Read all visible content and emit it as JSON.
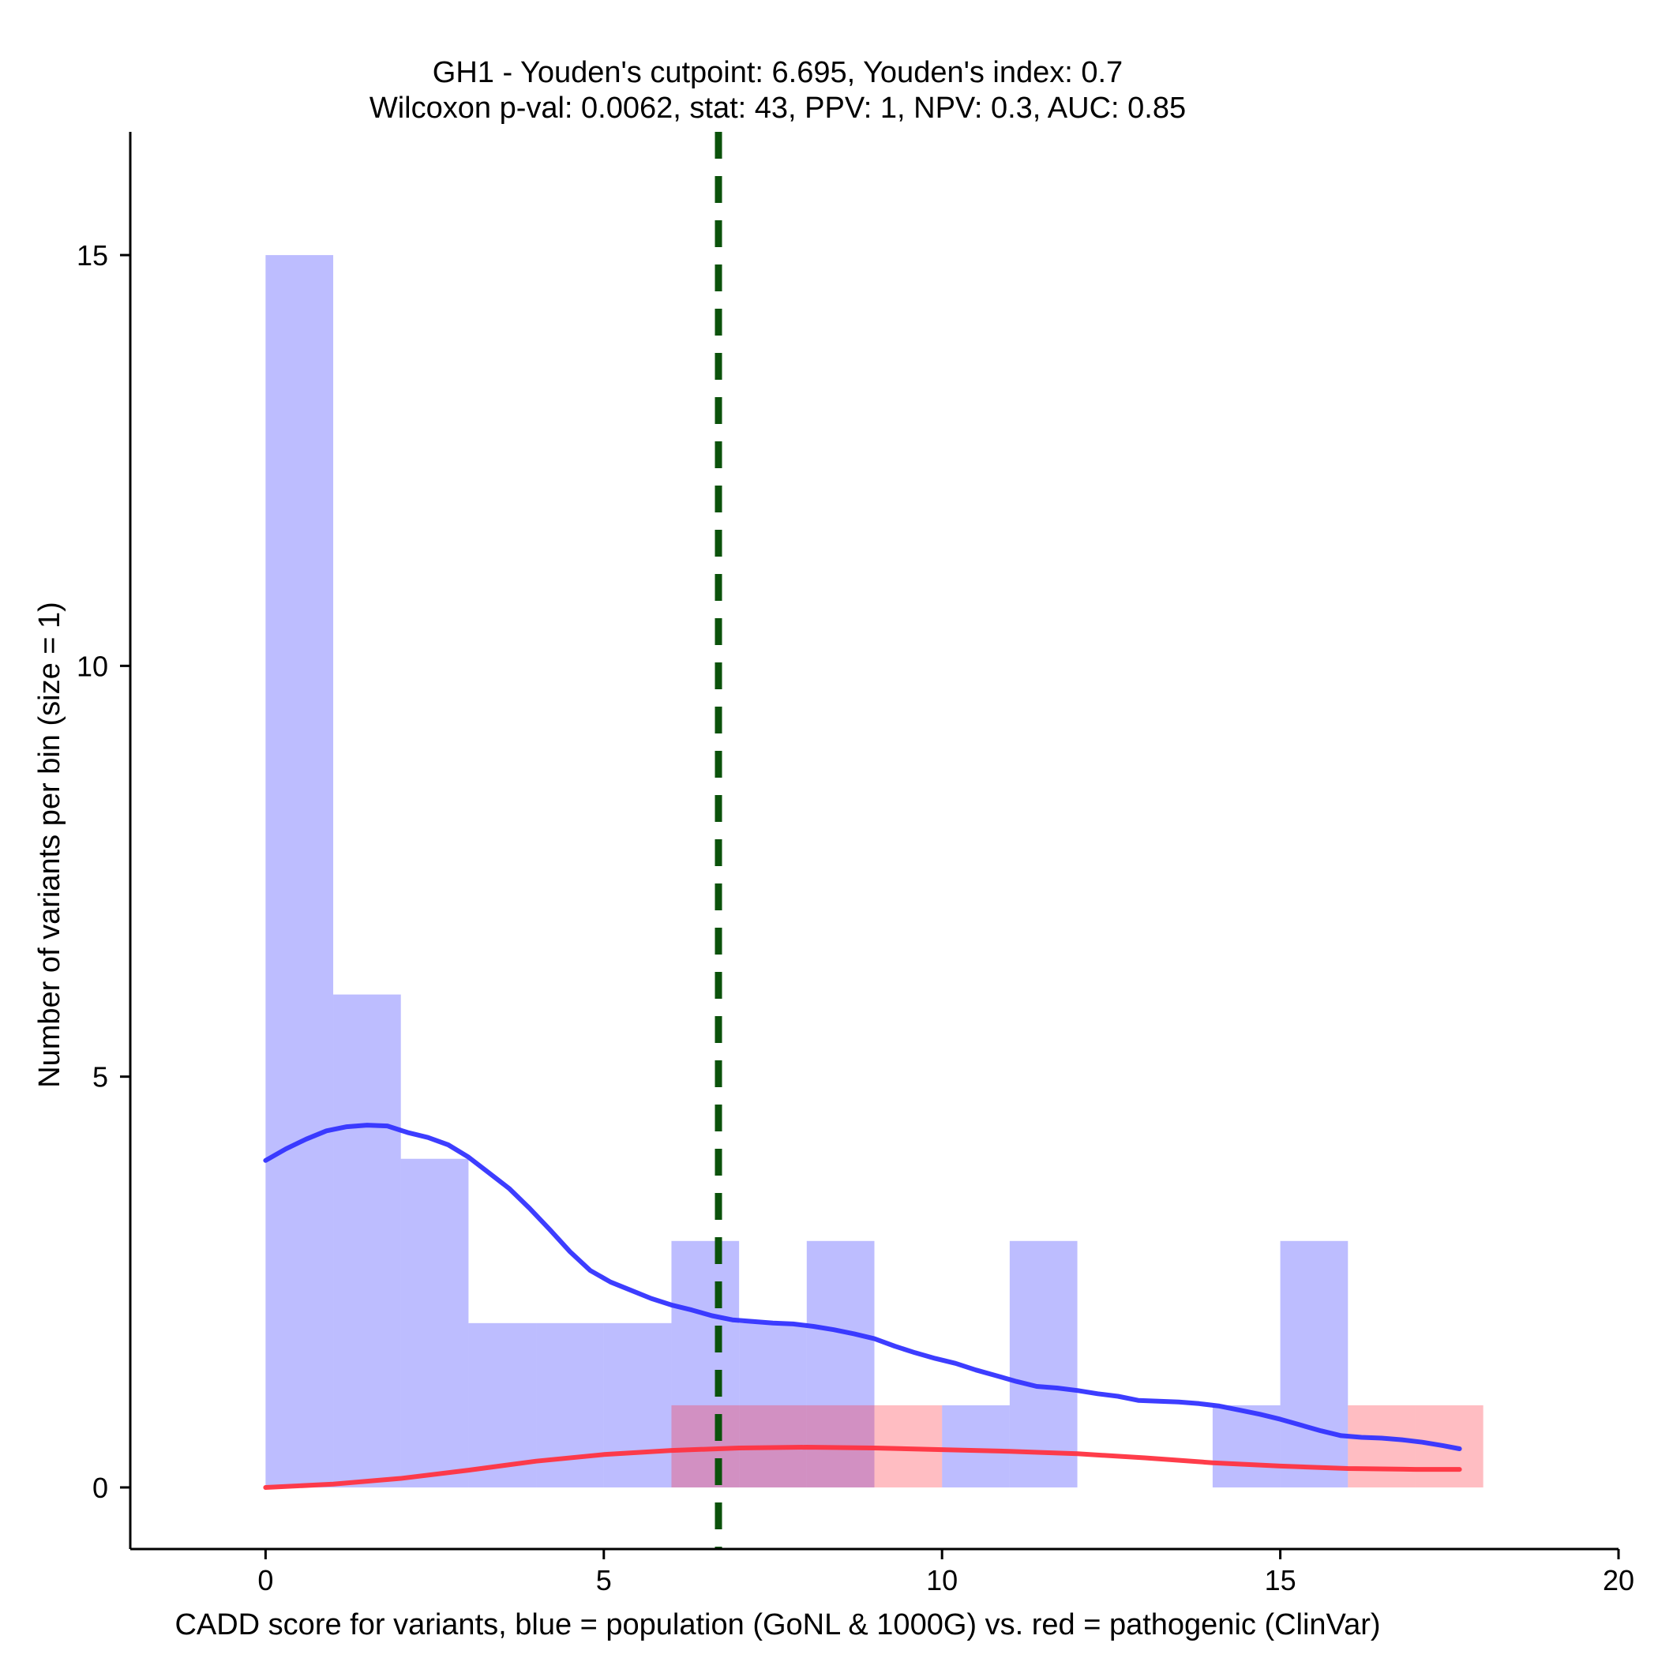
{
  "chart_data": {
    "type": "histogram",
    "title_line1": "GH1 - Youden's cutpoint: 6.695, Youden's index: 0.7",
    "title_line2": "Wilcoxon p-val: 0.0062, stat: 43, PPV: 1, NPV: 0.3, AUC: 0.85",
    "xlabel": "CADD score for variants, blue = population (GoNL & 1000G) vs. red = pathogenic (ClinVar)",
    "ylabel": "Number of variants per bin (size = 1)",
    "xlim": [
      -2,
      20
    ],
    "ylim": [
      -0.75,
      16.5
    ],
    "xticks": [
      0,
      5,
      10,
      15,
      20
    ],
    "yticks": [
      0,
      5,
      10,
      15
    ],
    "bin_size": 1,
    "cutpoint": 6.695,
    "colors": {
      "population": "#3333ff",
      "pathogenic": "#ff3340",
      "cutpoint": "#0b520b",
      "axis": "#000000"
    },
    "series": [
      {
        "name": "population (GoNL & 1000G)",
        "bins": [
          {
            "start": 0,
            "end": 1,
            "count": 15
          },
          {
            "start": 1,
            "end": 2,
            "count": 6
          },
          {
            "start": 2,
            "end": 3,
            "count": 4
          },
          {
            "start": 3,
            "end": 4,
            "count": 2
          },
          {
            "start": 4,
            "end": 5,
            "count": 2
          },
          {
            "start": 5,
            "end": 6,
            "count": 2
          },
          {
            "start": 6,
            "end": 7,
            "count": 3
          },
          {
            "start": 7,
            "end": 8,
            "count": 2
          },
          {
            "start": 8,
            "end": 9,
            "count": 3
          },
          {
            "start": 10,
            "end": 11,
            "count": 1
          },
          {
            "start": 11,
            "end": 12,
            "count": 3
          },
          {
            "start": 14,
            "end": 15,
            "count": 1
          },
          {
            "start": 15,
            "end": 16,
            "count": 3
          }
        ],
        "density_curve": [
          [
            0,
            3.98
          ],
          [
            0.3,
            4.12
          ],
          [
            0.6,
            4.24
          ],
          [
            0.9,
            4.34
          ],
          [
            1.2,
            4.39
          ],
          [
            1.5,
            4.41
          ],
          [
            1.8,
            4.4
          ],
          [
            2.1,
            4.32
          ],
          [
            2.4,
            4.26
          ],
          [
            2.7,
            4.17
          ],
          [
            3.0,
            4.02
          ],
          [
            3.3,
            3.83
          ],
          [
            3.6,
            3.64
          ],
          [
            3.9,
            3.4
          ],
          [
            4.2,
            3.14
          ],
          [
            4.5,
            2.87
          ],
          [
            4.8,
            2.64
          ],
          [
            5.1,
            2.5
          ],
          [
            5.4,
            2.4
          ],
          [
            5.7,
            2.3
          ],
          [
            6.0,
            2.22
          ],
          [
            6.3,
            2.16
          ],
          [
            6.6,
            2.09
          ],
          [
            6.9,
            2.04
          ],
          [
            7.2,
            2.02
          ],
          [
            7.5,
            2.0
          ],
          [
            7.8,
            1.99
          ],
          [
            8.1,
            1.96
          ],
          [
            8.4,
            1.92
          ],
          [
            8.7,
            1.87
          ],
          [
            9.0,
            1.81
          ],
          [
            9.3,
            1.72
          ],
          [
            9.6,
            1.64
          ],
          [
            9.9,
            1.57
          ],
          [
            10.2,
            1.51
          ],
          [
            10.5,
            1.43
          ],
          [
            10.8,
            1.36
          ],
          [
            11.1,
            1.29
          ],
          [
            11.4,
            1.23
          ],
          [
            11.7,
            1.21
          ],
          [
            12.0,
            1.18
          ],
          [
            12.3,
            1.14
          ],
          [
            12.6,
            1.11
          ],
          [
            12.9,
            1.06
          ],
          [
            13.2,
            1.05
          ],
          [
            13.5,
            1.04
          ],
          [
            13.8,
            1.02
          ],
          [
            14.1,
            0.99
          ],
          [
            14.4,
            0.94
          ],
          [
            14.7,
            0.89
          ],
          [
            15.0,
            0.83
          ],
          [
            15.3,
            0.76
          ],
          [
            15.6,
            0.69
          ],
          [
            15.9,
            0.63
          ],
          [
            16.2,
            0.61
          ],
          [
            16.5,
            0.6
          ],
          [
            16.8,
            0.58
          ],
          [
            17.1,
            0.55
          ],
          [
            17.4,
            0.51
          ],
          [
            17.65,
            0.47
          ]
        ]
      },
      {
        "name": "pathogenic (ClinVar)",
        "bins": [
          {
            "start": 6,
            "end": 7,
            "count": 1
          },
          {
            "start": 7,
            "end": 8,
            "count": 1
          },
          {
            "start": 8,
            "end": 9,
            "count": 1
          },
          {
            "start": 9,
            "end": 10,
            "count": 1
          },
          {
            "start": 16,
            "end": 17,
            "count": 1
          },
          {
            "start": 17,
            "end": 18,
            "count": 1
          }
        ],
        "density_curve": [
          [
            0,
            0.0
          ],
          [
            1,
            0.04
          ],
          [
            2,
            0.11
          ],
          [
            3,
            0.21
          ],
          [
            4,
            0.32
          ],
          [
            5,
            0.4
          ],
          [
            6,
            0.45
          ],
          [
            7,
            0.48
          ],
          [
            8,
            0.49
          ],
          [
            9,
            0.48
          ],
          [
            10,
            0.46
          ],
          [
            11,
            0.44
          ],
          [
            12,
            0.41
          ],
          [
            13,
            0.36
          ],
          [
            14,
            0.3
          ],
          [
            15,
            0.26
          ],
          [
            16,
            0.23
          ],
          [
            17,
            0.22
          ],
          [
            17.65,
            0.22
          ]
        ]
      }
    ]
  }
}
